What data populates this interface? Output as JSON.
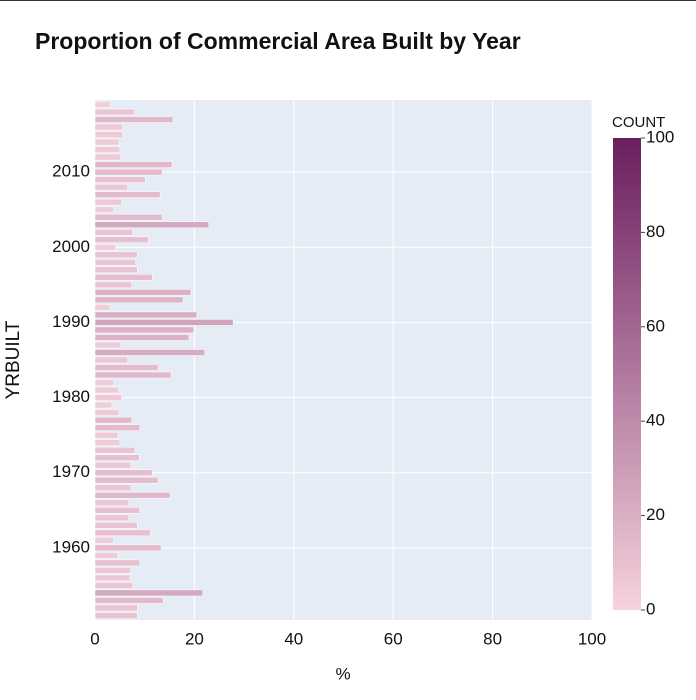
{
  "chart_data": {
    "type": "bar",
    "orientation": "horizontal",
    "title": "Proportion of Commercial Area Built by Year",
    "x_label": "%",
    "y_label": "YRBUILT",
    "y": [
      1951,
      1952,
      1953,
      1954,
      1955,
      1956,
      1957,
      1958,
      1959,
      1960,
      1961,
      1962,
      1963,
      1964,
      1965,
      1966,
      1967,
      1968,
      1969,
      1970,
      1971,
      1972,
      1973,
      1974,
      1975,
      1976,
      1977,
      1978,
      1979,
      1980,
      1981,
      1982,
      1983,
      1984,
      1985,
      1986,
      1987,
      1988,
      1989,
      1990,
      1991,
      1992,
      1993,
      1994,
      1995,
      1996,
      1997,
      1998,
      1999,
      2000,
      2001,
      2002,
      2003,
      2004,
      2005,
      2006,
      2007,
      2008,
      2009,
      2010,
      2011,
      2012,
      2013,
      2014,
      2015,
      2016,
      2017,
      2018,
      2019
    ],
    "values": [
      8.5,
      8.5,
      13.7,
      21.7,
      7.6,
      7.0,
      7.2,
      9.0,
      4.6,
      13.3,
      3.8,
      11.1,
      8.5,
      6.8,
      9.0,
      6.8,
      15.1,
      7.2,
      12.7,
      11.5,
      7.2,
      8.9,
      8.0,
      5.0,
      4.6,
      9.0,
      7.4,
      4.8,
      3.4,
      5.4,
      4.8,
      3.8,
      15.3,
      12.7,
      6.6,
      22.1,
      5.2,
      18.9,
      19.9,
      27.8,
      20.5,
      3.0,
      17.7,
      19.3,
      7.4,
      11.5,
      8.5,
      8.2,
      8.5,
      4.2,
      10.7,
      7.6,
      22.9,
      13.5,
      3.8,
      5.4,
      13.1,
      6.6,
      10.1,
      13.5,
      15.5,
      5.2,
      5.0,
      4.8,
      5.6,
      5.6,
      15.7,
      8.0,
      3.0
    ],
    "counts": [
      9,
      9,
      14,
      24,
      8,
      7,
      7,
      10,
      5,
      13,
      4,
      11,
      9,
      7,
      10,
      7,
      15,
      8,
      13,
      12,
      7,
      10,
      9,
      5,
      5,
      14,
      15,
      5,
      4,
      6,
      5,
      4,
      15,
      13,
      7,
      22,
      5,
      18,
      19,
      26,
      20,
      3,
      17,
      18,
      8,
      12,
      9,
      8,
      9,
      4,
      11,
      8,
      24,
      14,
      4,
      6,
      13,
      7,
      10,
      14,
      15,
      5,
      5,
      5,
      6,
      6,
      15,
      8,
      3
    ],
    "colorbar_title": "COUNT",
    "colorscale": [
      "#f6d3dd",
      "#6a1e5e"
    ],
    "clim": [
      0,
      100
    ],
    "cticks": [
      0,
      20,
      40,
      60,
      80,
      100
    ],
    "xlim": [
      0,
      100
    ],
    "xticks": [
      0,
      20,
      40,
      60,
      80,
      100
    ],
    "ylim": [
      1950.4,
      2019.6
    ],
    "yticks": [
      1960,
      1970,
      1980,
      1990,
      2000,
      2010
    ],
    "grid": true
  }
}
